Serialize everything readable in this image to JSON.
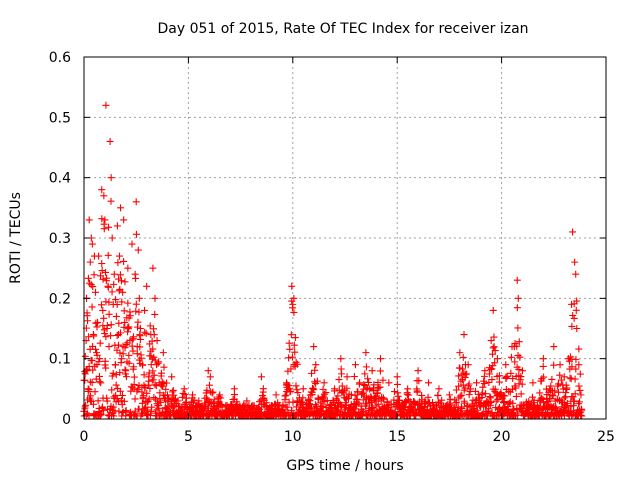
{
  "chart_data": {
    "type": "scatter",
    "title": "Day 051 of 2015, Rate Of TEC Index for receiver izan",
    "xlabel": "GPS time / hours",
    "ylabel": "ROTI / TECUs",
    "xlim": [
      0,
      25
    ],
    "ylim": [
      0,
      0.6
    ],
    "xticks": [
      "0",
      "5",
      "10",
      "15",
      "20",
      "25"
    ],
    "yticks": [
      "0",
      "0.1",
      "0.2",
      "0.3",
      "0.4",
      "0.5",
      "0.6"
    ],
    "grid": true,
    "marker": "+",
    "color": "#ff0000",
    "series": [
      {
        "name": "ROTI",
        "points": [
          [
            0.05,
            0.02
          ],
          [
            0.1,
            0.13
          ],
          [
            0.12,
            0.2
          ],
          [
            0.15,
            0.08
          ],
          [
            0.2,
            0.05
          ],
          [
            0.25,
            0.33
          ],
          [
            0.3,
            0.26
          ],
          [
            0.35,
            0.3
          ],
          [
            0.4,
            0.29
          ],
          [
            0.45,
            0.14
          ],
          [
            0.5,
            0.27
          ],
          [
            0.55,
            0.21
          ],
          [
            0.6,
            0.11
          ],
          [
            0.65,
            0.16
          ],
          [
            0.7,
            0.27
          ],
          [
            0.75,
            0.1
          ],
          [
            0.8,
            0.06
          ],
          [
            0.85,
            0.38
          ],
          [
            0.9,
            0.18
          ],
          [
            0.95,
            0.37
          ],
          [
            1.0,
            0.33
          ],
          [
            1.05,
            0.52
          ],
          [
            1.1,
            0.15
          ],
          [
            1.15,
            0.22
          ],
          [
            1.2,
            0.12
          ],
          [
            1.25,
            0.46
          ],
          [
            1.3,
            0.4
          ],
          [
            1.35,
            0.3
          ],
          [
            1.4,
            0.19
          ],
          [
            1.45,
            0.24
          ],
          [
            1.5,
            0.09
          ],
          [
            1.55,
            0.17
          ],
          [
            1.6,
            0.32
          ],
          [
            1.65,
            0.14
          ],
          [
            1.7,
            0.27
          ],
          [
            1.75,
            0.35
          ],
          [
            1.8,
            0.1
          ],
          [
            1.85,
            0.21
          ],
          [
            1.9,
            0.33
          ],
          [
            1.95,
            0.16
          ],
          [
            2.0,
            0.08
          ],
          [
            2.1,
            0.25
          ],
          [
            2.2,
            0.13
          ],
          [
            2.3,
            0.29
          ],
          [
            2.4,
            0.05
          ],
          [
            2.45,
            0.24
          ],
          [
            2.5,
            0.36
          ],
          [
            2.55,
            0.12
          ],
          [
            2.6,
            0.28
          ],
          [
            2.65,
            0.2
          ],
          [
            2.7,
            0.15
          ],
          [
            2.8,
            0.09
          ],
          [
            2.9,
            0.18
          ],
          [
            3.0,
            0.22
          ],
          [
            3.1,
            0.07
          ],
          [
            3.2,
            0.14
          ],
          [
            3.3,
            0.25
          ],
          [
            3.4,
            0.2
          ],
          [
            3.5,
            0.13
          ],
          [
            3.6,
            0.06
          ],
          [
            3.8,
            0.11
          ],
          [
            4.0,
            0.04
          ],
          [
            4.2,
            0.07
          ],
          [
            4.5,
            0.03
          ],
          [
            4.8,
            0.05
          ],
          [
            5.2,
            0.04
          ],
          [
            5.5,
            0.03
          ],
          [
            5.95,
            0.08
          ],
          [
            6.05,
            0.07
          ],
          [
            6.5,
            0.04
          ],
          [
            7.2,
            0.05
          ],
          [
            7.8,
            0.03
          ],
          [
            8.5,
            0.07
          ],
          [
            9.2,
            0.04
          ],
          [
            9.7,
            0.06
          ],
          [
            9.95,
            0.22
          ],
          [
            10.0,
            0.19
          ],
          [
            10.05,
            0.2
          ],
          [
            10.5,
            0.05
          ],
          [
            11.0,
            0.12
          ],
          [
            11.1,
            0.09
          ],
          [
            11.5,
            0.06
          ],
          [
            12.0,
            0.05
          ],
          [
            12.3,
            0.1
          ],
          [
            12.6,
            0.07
          ],
          [
            13.0,
            0.09
          ],
          [
            13.2,
            0.06
          ],
          [
            13.5,
            0.11
          ],
          [
            13.8,
            0.08
          ],
          [
            14.2,
            0.1
          ],
          [
            14.6,
            0.06
          ],
          [
            15.0,
            0.07
          ],
          [
            15.5,
            0.05
          ],
          [
            16.0,
            0.08
          ],
          [
            16.5,
            0.06
          ],
          [
            17.0,
            0.05
          ],
          [
            17.5,
            0.04
          ],
          [
            18.0,
            0.11
          ],
          [
            18.2,
            0.14
          ],
          [
            18.4,
            0.09
          ],
          [
            18.8,
            0.06
          ],
          [
            19.2,
            0.08
          ],
          [
            19.5,
            0.13
          ],
          [
            19.6,
            0.18
          ],
          [
            19.8,
            0.1
          ],
          [
            20.2,
            0.09
          ],
          [
            20.5,
            0.12
          ],
          [
            20.75,
            0.23
          ],
          [
            20.8,
            0.2
          ],
          [
            21.0,
            0.08
          ],
          [
            21.5,
            0.06
          ],
          [
            22.0,
            0.1
          ],
          [
            22.3,
            0.05
          ],
          [
            22.5,
            0.12
          ],
          [
            22.8,
            0.09
          ],
          [
            23.0,
            0.07
          ],
          [
            23.2,
            0.1
          ],
          [
            23.35,
            0.19
          ],
          [
            23.4,
            0.31
          ],
          [
            23.5,
            0.26
          ],
          [
            23.55,
            0.24
          ],
          [
            23.6,
            0.15
          ],
          [
            23.7,
            0.09
          ],
          [
            23.8,
            0.04
          ]
        ]
      }
    ]
  }
}
